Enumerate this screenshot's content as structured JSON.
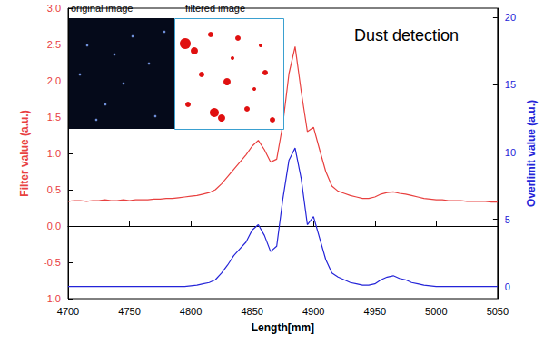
{
  "chart_data": {
    "type": "line",
    "annotation": "Dust detection",
    "inset_labels": [
      "original image",
      "filtered image"
    ],
    "xlabel": "Length[mm]",
    "ylabel": "Filter value (a.u.)",
    "y2label": "Overlimit value (a.u.)",
    "grid": false,
    "xlim": [
      4700,
      5050
    ],
    "xticks": [
      4700,
      4750,
      4800,
      4850,
      4900,
      4950,
      5000,
      5050
    ],
    "ylim": [
      -1,
      3
    ],
    "yticks": [
      {
        "value": -1,
        "label": "-1.0"
      },
      {
        "value": -0.5,
        "label": "-0.5"
      },
      {
        "value": 0,
        "label": "0.0"
      },
      {
        "value": 0.5,
        "label": "0.5"
      },
      {
        "value": 1,
        "label": "1.0"
      },
      {
        "value": 1.5,
        "label": "1.5"
      },
      {
        "value": 2,
        "label": "2.0"
      },
      {
        "value": 2.5,
        "label": "2.5"
      },
      {
        "value": 3,
        "label": "3.0"
      }
    ],
    "y2lim": [
      -0.9,
      20.7
    ],
    "y2ticks": [
      0,
      5,
      10,
      15,
      20
    ],
    "x": [
      4700,
      4705,
      4710,
      4715,
      4720,
      4725,
      4730,
      4735,
      4740,
      4745,
      4750,
      4755,
      4760,
      4765,
      4770,
      4775,
      4780,
      4785,
      4790,
      4795,
      4800,
      4805,
      4810,
      4815,
      4820,
      4825,
      4830,
      4835,
      4840,
      4845,
      4850,
      4855,
      4860,
      4865,
      4870,
      4875,
      4880,
      4885,
      4890,
      4895,
      4900,
      4905,
      4910,
      4915,
      4920,
      4925,
      4930,
      4935,
      4940,
      4945,
      4950,
      4955,
      4960,
      4965,
      4970,
      4975,
      4980,
      4985,
      4990,
      4995,
      5000,
      5005,
      5010,
      5015,
      5020,
      5025,
      5030,
      5035,
      5040,
      5045,
      5050
    ],
    "series": [
      {
        "name": "Filter value",
        "color": "#e8403f",
        "axis": "y",
        "values": [
          0.34,
          0.35,
          0.35,
          0.34,
          0.35,
          0.35,
          0.36,
          0.35,
          0.35,
          0.36,
          0.35,
          0.36,
          0.36,
          0.36,
          0.37,
          0.37,
          0.38,
          0.38,
          0.39,
          0.4,
          0.41,
          0.42,
          0.44,
          0.46,
          0.5,
          0.58,
          0.68,
          0.78,
          0.88,
          0.98,
          1.1,
          1.18,
          1.05,
          0.88,
          0.92,
          1.4,
          2.1,
          2.47,
          1.85,
          1.3,
          1.36,
          1.05,
          0.75,
          0.55,
          0.48,
          0.45,
          0.42,
          0.4,
          0.38,
          0.38,
          0.4,
          0.44,
          0.46,
          0.47,
          0.45,
          0.44,
          0.42,
          0.4,
          0.38,
          0.37,
          0.36,
          0.36,
          0.35,
          0.35,
          0.35,
          0.34,
          0.34,
          0.34,
          0.34,
          0.33,
          0.33
        ]
      },
      {
        "name": "Overlimit value",
        "color": "#2424d8",
        "axis": "y2",
        "values": [
          0,
          0,
          0,
          0,
          0,
          0,
          0,
          0,
          0,
          0,
          0,
          0,
          0,
          0,
          0,
          0,
          0,
          0,
          0,
          0,
          0.05,
          0.1,
          0.2,
          0.3,
          0.5,
          1.0,
          1.6,
          2.3,
          2.8,
          3.3,
          4.2,
          4.6,
          3.8,
          2.6,
          3.0,
          6.5,
          9.4,
          10.3,
          8.0,
          4.6,
          5.2,
          3.6,
          2.0,
          1.0,
          0.7,
          0.5,
          0.3,
          0.2,
          0.1,
          0.1,
          0.2,
          0.5,
          0.7,
          0.8,
          0.6,
          0.5,
          0.3,
          0.2,
          0.1,
          0.05,
          0,
          0,
          0,
          0,
          0,
          0,
          0,
          0,
          0,
          0,
          0
        ]
      }
    ]
  }
}
